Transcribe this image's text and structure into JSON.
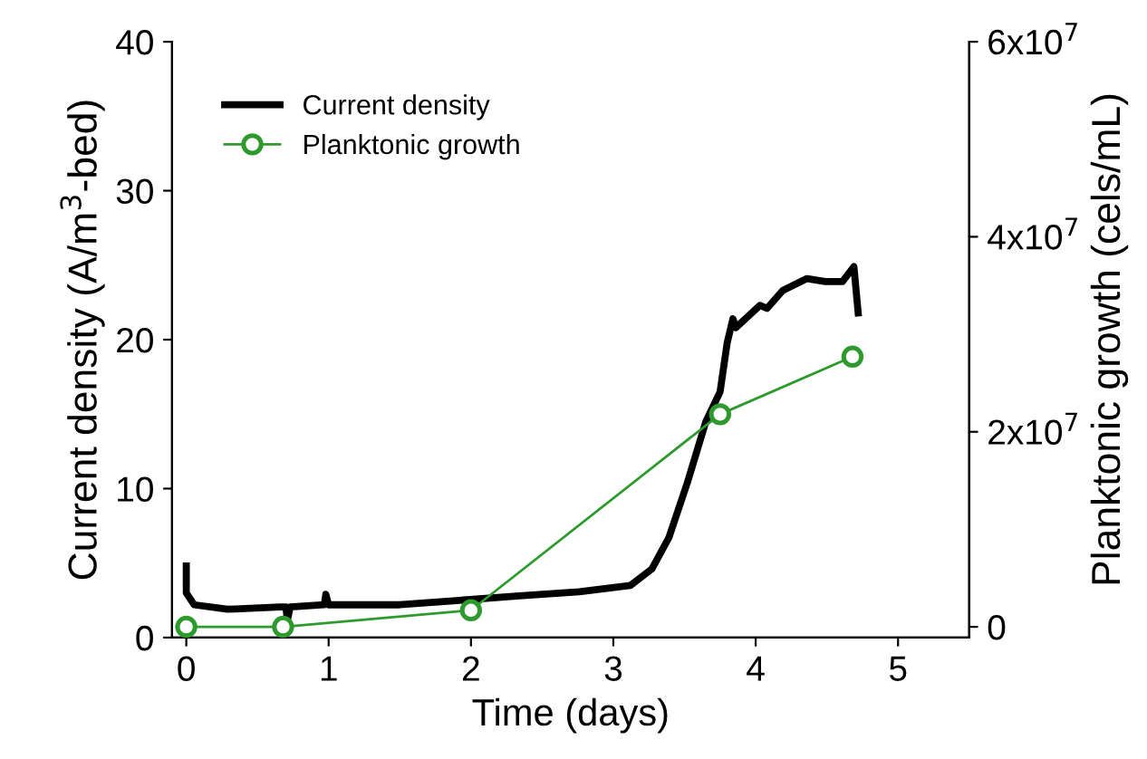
{
  "chart_data": {
    "type": "line",
    "xlabel": "Time (days)",
    "ylabel": "Current density (A/m$^{3}$-bed)",
    "y2label": "Planktonic growth (cels/mL)",
    "xlim": [
      -0.1,
      5.5
    ],
    "xticks": [
      0,
      1,
      2,
      3,
      4,
      5
    ],
    "ylim": [
      0,
      40
    ],
    "yticks": [
      0,
      10,
      20,
      30,
      40
    ],
    "y2lim": [
      -1100000,
      60000000
    ],
    "y2ticks": [
      {
        "value": 0,
        "label": "0"
      },
      {
        "value": 20000000,
        "label": "2x10$^{7}$"
      },
      {
        "value": 40000000,
        "label": "4x10$^{7}$"
      },
      {
        "value": 60000000,
        "label": "6x10$^{7}$"
      }
    ],
    "grid": false,
    "legend": "top left",
    "series": [
      {
        "name": "Current density",
        "color": "#000000",
        "marker": "none",
        "x": [
          0,
          0,
          0.055,
          0.29,
          0.66,
          0.7,
          0.71,
          0.73,
          0.97,
          0.98,
          1.0,
          1.5,
          1.92,
          2.34,
          2.76,
          3.12,
          3.27,
          3.39,
          3.52,
          3.65,
          3.75,
          3.8,
          3.84,
          3.86,
          4.03,
          4.08,
          4.19,
          4.36,
          4.49,
          4.61,
          4.69,
          4.72
        ],
        "values": [
          4.8,
          3.0,
          2.2,
          1.9,
          2.05,
          2.05,
          1.15,
          2.05,
          2.2,
          2.9,
          2.2,
          2.2,
          2.5,
          2.8,
          3.07,
          3.5,
          4.6,
          6.7,
          10.4,
          14.5,
          16.5,
          19.8,
          21.4,
          20.8,
          22.3,
          22.1,
          23.3,
          24.1,
          23.9,
          23.9,
          24.9,
          21.8
        ]
      },
      {
        "name": "Planktonic growth",
        "color": "#2e9a2e",
        "axis": "y2",
        "marker": "circle",
        "x": [
          0,
          0.68,
          2.0,
          3.75,
          4.68
        ],
        "values": [
          0,
          0,
          1700000,
          21800000,
          27700000
        ]
      }
    ]
  }
}
